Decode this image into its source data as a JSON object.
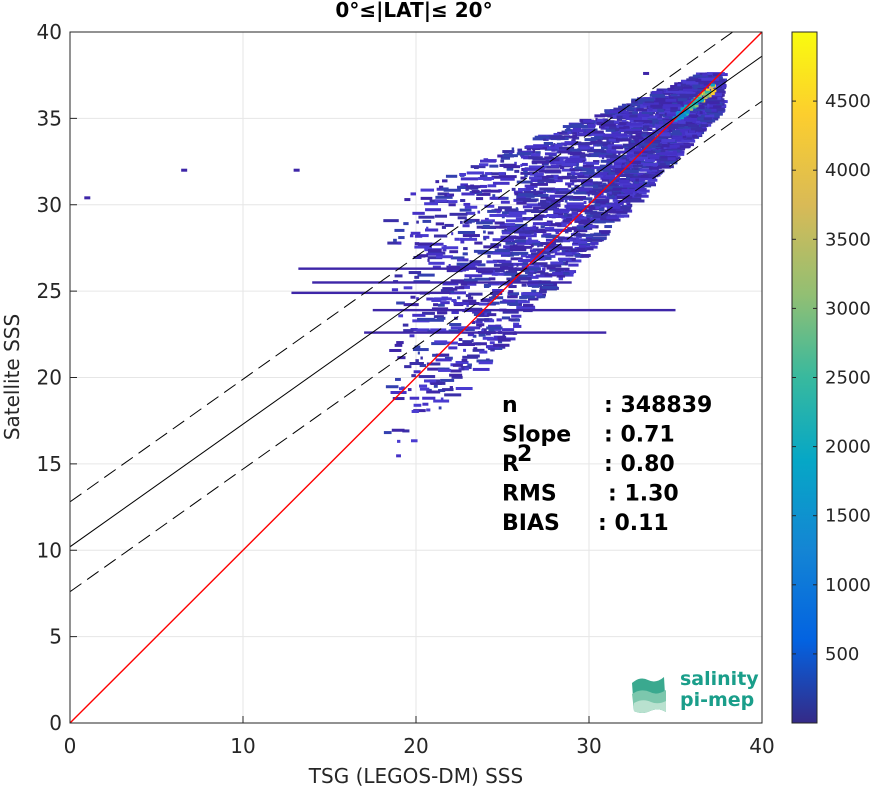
{
  "chart_data": {
    "type": "heatmap",
    "title": "0°≤|LAT|≤ 20°",
    "xlabel": "TSG (LEGOS-DM) SSS",
    "ylabel": "Satellite SSS",
    "xlim": [
      0,
      40
    ],
    "ylim": [
      0,
      40
    ],
    "x_ticks": [
      "0",
      "10",
      "20",
      "30",
      "40"
    ],
    "y_ticks": [
      "0",
      "5",
      "10",
      "15",
      "20",
      "25",
      "30",
      "35",
      "40"
    ],
    "grid": true,
    "colorbar": {
      "min": 0,
      "max": 5000,
      "ticks": [
        "500",
        "1000",
        "1500",
        "2000",
        "2500",
        "3000",
        "3500",
        "4000",
        "4500"
      ],
      "colormap": "parula"
    },
    "lines": [
      {
        "role": "identity",
        "intercept": 0,
        "slope": 1,
        "color": "#ff0000",
        "style": "solid"
      },
      {
        "role": "regression fit",
        "intercept": 10.2,
        "slope": 0.71,
        "color": "#000000",
        "style": "solid"
      },
      {
        "role": "upper bound",
        "intercept": 12.8,
        "slope": 0.71,
        "color": "#000000",
        "style": "dashed"
      },
      {
        "role": "lower bound",
        "intercept": 7.6,
        "slope": 0.71,
        "color": "#000000",
        "style": "dashed"
      }
    ],
    "density_core": {
      "x": 36.5,
      "y": 36.2,
      "peak_count": 4900
    },
    "stats": [
      {
        "label": "n",
        "value": ": 348839"
      },
      {
        "label": "Slope",
        "value": ": 0.71"
      },
      {
        "label": "R",
        "label_sup": "2",
        "value": ": 0.80"
      },
      {
        "label": "RMS",
        "value": ": 1.30"
      },
      {
        "label": "BIAS",
        "value": ": 0.11"
      }
    ]
  },
  "logo": {
    "line1": "salinity",
    "line2": "pi-mep"
  }
}
